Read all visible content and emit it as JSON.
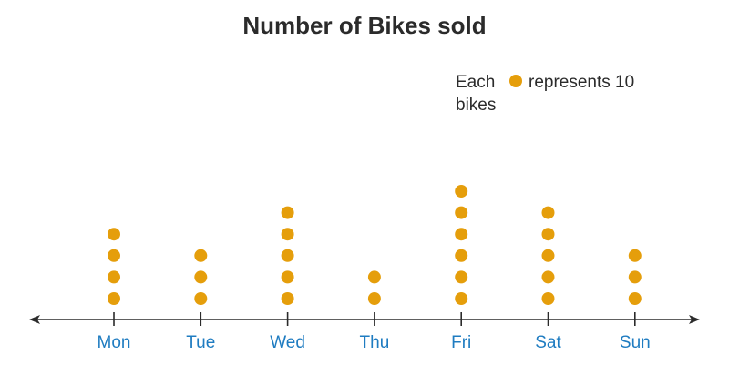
{
  "chart_data": {
    "type": "scatter",
    "title": "Number of Bikes sold",
    "legend": {
      "prefix": "Each",
      "suffix": "represents 10",
      "line2": "bikes"
    },
    "categories": [
      "Mon",
      "Tue",
      "Wed",
      "Thu",
      "Fri",
      "Sat",
      "Sun"
    ],
    "values": [
      4,
      3,
      5,
      2,
      6,
      5,
      3
    ],
    "units_per_symbol": 10,
    "colors": {
      "dot": "#E59E0B",
      "tick_label": "#1F7CC1",
      "axis": "#2b2b2b",
      "text": "#2b2b2b"
    }
  }
}
